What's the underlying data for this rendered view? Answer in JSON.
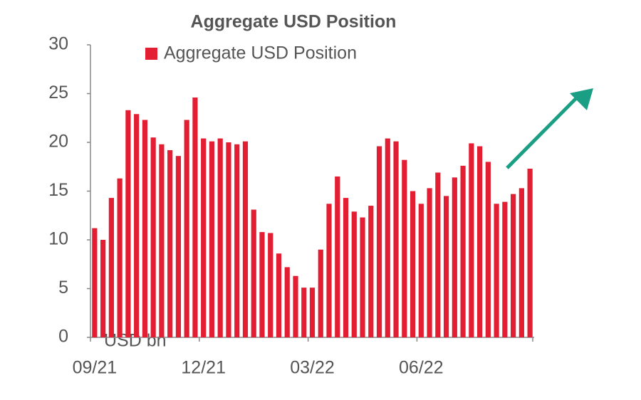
{
  "chart_data": {
    "type": "bar",
    "title": "Aggregate USD Position",
    "y_label": "USD bn",
    "categories": [
      "09/21",
      null,
      null,
      null,
      null,
      null,
      null,
      null,
      null,
      null,
      null,
      null,
      null,
      "12/21",
      null,
      null,
      null,
      null,
      null,
      null,
      null,
      null,
      null,
      null,
      null,
      null,
      "03/22",
      null,
      null,
      null,
      null,
      null,
      null,
      null,
      null,
      null,
      null,
      null,
      null,
      "06/22",
      null,
      null,
      null,
      null,
      null,
      null,
      null,
      null,
      null,
      null,
      null,
      null,
      null
    ],
    "series": [
      {
        "name": "Aggregate USD Position",
        "color": "#e31e33",
        "values": [
          11.2,
          10.0,
          14.3,
          16.3,
          23.3,
          22.9,
          22.3,
          20.5,
          19.8,
          19.2,
          18.6,
          22.3,
          24.6,
          20.4,
          20.1,
          20.4,
          20.0,
          19.8,
          20.1,
          13.1,
          10.8,
          10.7,
          8.6,
          7.2,
          6.3,
          5.1,
          5.1,
          9.0,
          13.7,
          16.5,
          14.3,
          12.9,
          12.3,
          13.5,
          19.6,
          20.4,
          20.1,
          18.2,
          15.0,
          13.7,
          15.3,
          16.9,
          14.5,
          16.4,
          17.6,
          19.9,
          19.6,
          18.0,
          13.7,
          13.9,
          14.7,
          15.3,
          17.3
        ]
      }
    ],
    "ylim": [
      0,
      30
    ],
    "yticks": [
      0,
      5,
      10,
      15,
      20,
      25,
      30
    ],
    "grid": false
  }
}
